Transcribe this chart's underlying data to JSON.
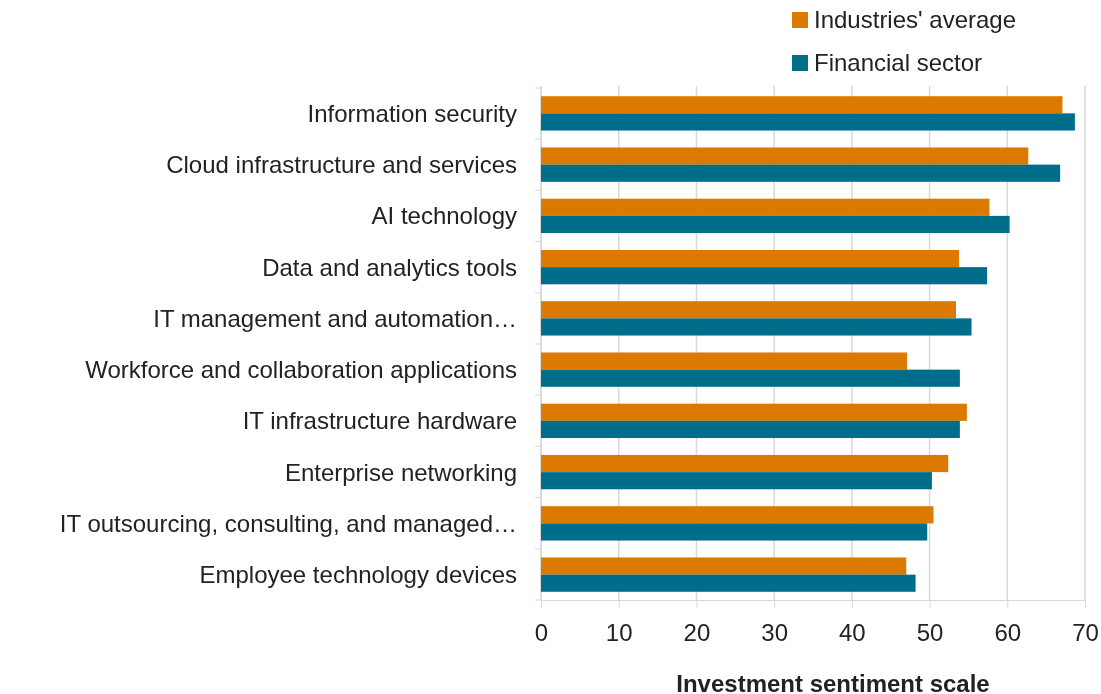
{
  "chart_data": {
    "type": "bar",
    "orientation": "horizontal",
    "xlabel": "Investment sentiment scale",
    "categories": [
      "Information security",
      "Cloud infrastructure and services",
      "AI technology",
      "Data and analytics tools",
      "IT management and automation…",
      "Workforce and collaboration applications",
      "IT infrastructure hardware",
      "Enterprise networking",
      "IT outsourcing, consulting, and managed…",
      "Employee technology devices"
    ],
    "series": [
      {
        "name": "Industries' average",
        "color": "#dc7900",
        "values": [
          67.1,
          62.7,
          57.7,
          53.8,
          53.4,
          47.1,
          54.8,
          52.4,
          50.5,
          47.0
        ]
      },
      {
        "name": "Financial sector",
        "color": "#006e8a",
        "values": [
          68.7,
          66.8,
          60.3,
          57.4,
          55.4,
          53.9,
          53.9,
          50.3,
          49.7,
          48.2
        ]
      }
    ],
    "xlim": [
      0,
      70
    ],
    "xticks": [
      0,
      10,
      20,
      30,
      40,
      50,
      60,
      70
    ],
    "grid": "x",
    "legend": "top right"
  }
}
